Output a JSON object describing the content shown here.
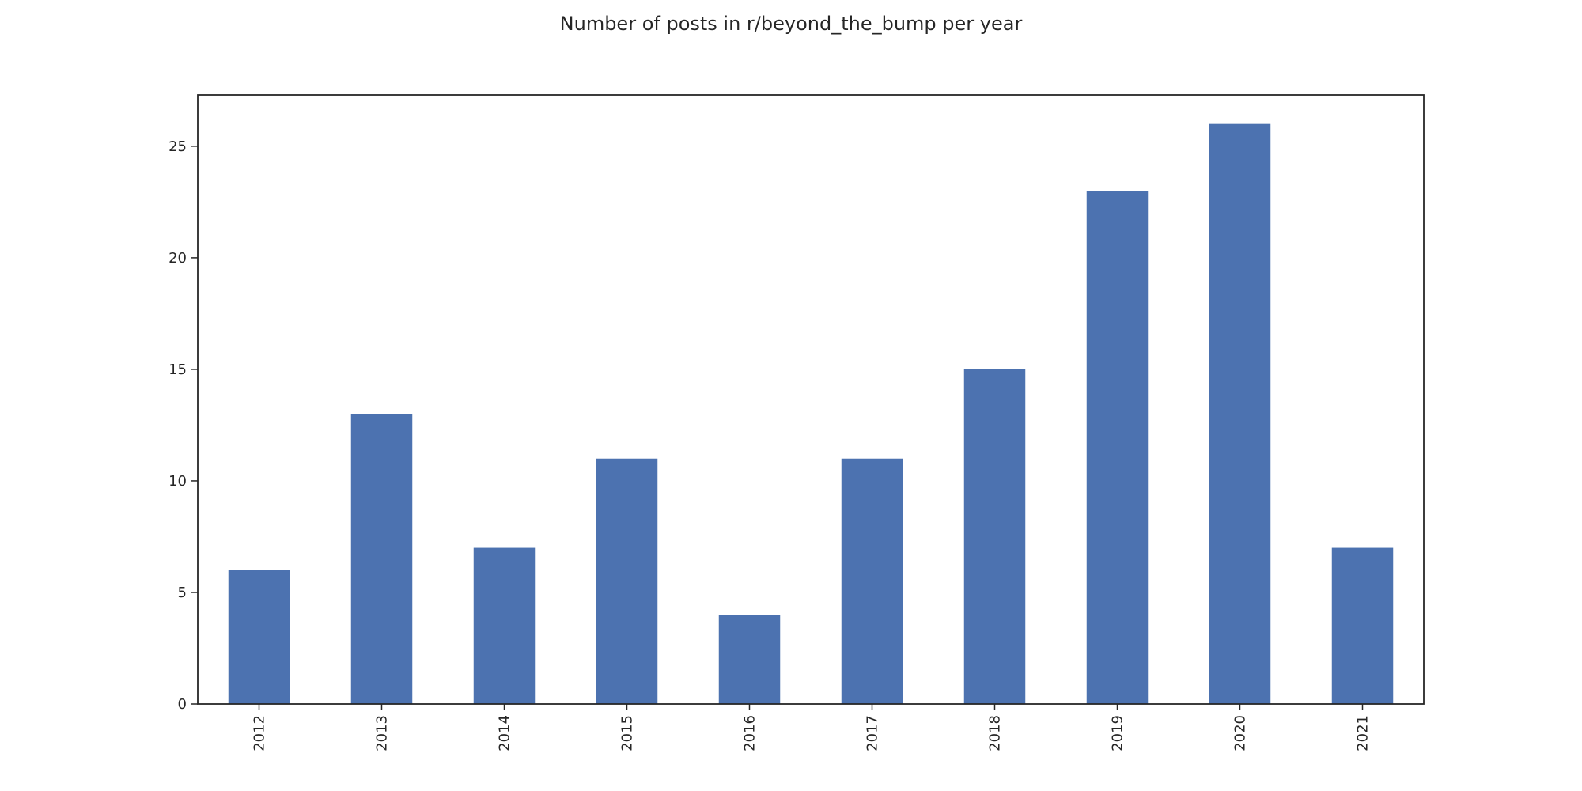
{
  "chart_data": {
    "type": "bar",
    "title": "Number of posts in r/beyond_the_bump per year",
    "xlabel": "",
    "ylabel": "",
    "categories": [
      "2012",
      "2013",
      "2014",
      "2015",
      "2016",
      "2017",
      "2018",
      "2019",
      "2020",
      "2021"
    ],
    "values": [
      6,
      13,
      7,
      11,
      4,
      11,
      15,
      23,
      26,
      7
    ],
    "ylim": [
      0,
      27.3
    ],
    "yticks": [
      0,
      5,
      10,
      15,
      20,
      25
    ],
    "xtick_rotation": "vertical",
    "grid": false,
    "legend": "none",
    "bar_color": "#4c72b0",
    "axis_color": "#262626"
  }
}
